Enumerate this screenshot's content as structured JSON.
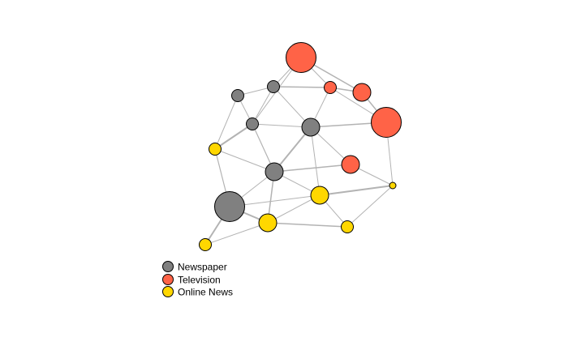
{
  "legend": {
    "items": [
      {
        "label": "Newspaper",
        "category": "newspaper"
      },
      {
        "label": "Television",
        "category": "television"
      },
      {
        "label": "Online News",
        "category": "online"
      }
    ]
  },
  "colors": {
    "newspaper": "#808080",
    "television": "#ff6347",
    "online": "#ffd700",
    "edge": "#b3b3b3",
    "node_border": "#000000"
  },
  "nodes": [
    {
      "id": "n1",
      "category": "television",
      "size": "large"
    },
    {
      "id": "n2",
      "category": "newspaper",
      "size": "small"
    },
    {
      "id": "n3",
      "category": "television",
      "size": "small"
    },
    {
      "id": "n4",
      "category": "television",
      "size": "medium"
    },
    {
      "id": "n5",
      "category": "newspaper",
      "size": "small"
    },
    {
      "id": "n6",
      "category": "television",
      "size": "large"
    },
    {
      "id": "n7",
      "category": "newspaper",
      "size": "small"
    },
    {
      "id": "n8",
      "category": "newspaper",
      "size": "medium"
    },
    {
      "id": "n9",
      "category": "online",
      "size": "small"
    },
    {
      "id": "n10",
      "category": "television",
      "size": "medium"
    },
    {
      "id": "n11",
      "category": "newspaper",
      "size": "medium"
    },
    {
      "id": "n12",
      "category": "online",
      "size": "tiny"
    },
    {
      "id": "n13",
      "category": "online",
      "size": "medium"
    },
    {
      "id": "n14",
      "category": "newspaper",
      "size": "large"
    },
    {
      "id": "n15",
      "category": "online",
      "size": "medium"
    },
    {
      "id": "n16",
      "category": "online",
      "size": "small"
    },
    {
      "id": "n17",
      "category": "online",
      "size": "small"
    }
  ],
  "edges": [
    [
      "n2",
      "n5"
    ],
    [
      "n1",
      "n5"
    ],
    [
      "n1",
      "n3"
    ],
    [
      "n1",
      "n4"
    ],
    [
      "n5",
      "n3"
    ],
    [
      "n1",
      "n7"
    ],
    [
      "n3",
      "n4"
    ],
    [
      "n4",
      "n6"
    ],
    [
      "n3",
      "n6"
    ],
    [
      "n3",
      "n8"
    ],
    [
      "n5",
      "n7"
    ],
    [
      "n5",
      "n8"
    ],
    [
      "n2",
      "n7"
    ],
    [
      "n2",
      "n9"
    ],
    [
      "n7",
      "n8"
    ],
    [
      "n7",
      "n9"
    ],
    [
      "n7",
      "n11"
    ],
    [
      "n8",
      "n6"
    ],
    [
      "n8",
      "n11"
    ],
    [
      "n8",
      "n10"
    ],
    [
      "n8",
      "n13"
    ],
    [
      "n6",
      "n12"
    ],
    [
      "n9",
      "n11"
    ],
    [
      "n9",
      "n14"
    ],
    [
      "n11",
      "n10"
    ],
    [
      "n11",
      "n14"
    ],
    [
      "n11",
      "n15"
    ],
    [
      "n11",
      "n13"
    ],
    [
      "n10",
      "n12"
    ],
    [
      "n13",
      "n12"
    ],
    [
      "n14",
      "n13"
    ],
    [
      "n14",
      "n15"
    ],
    [
      "n14",
      "n17"
    ],
    [
      "n15",
      "n13"
    ],
    [
      "n15",
      "n16"
    ],
    [
      "n15",
      "n17"
    ],
    [
      "n13",
      "n16"
    ],
    [
      "n16",
      "n12"
    ]
  ]
}
